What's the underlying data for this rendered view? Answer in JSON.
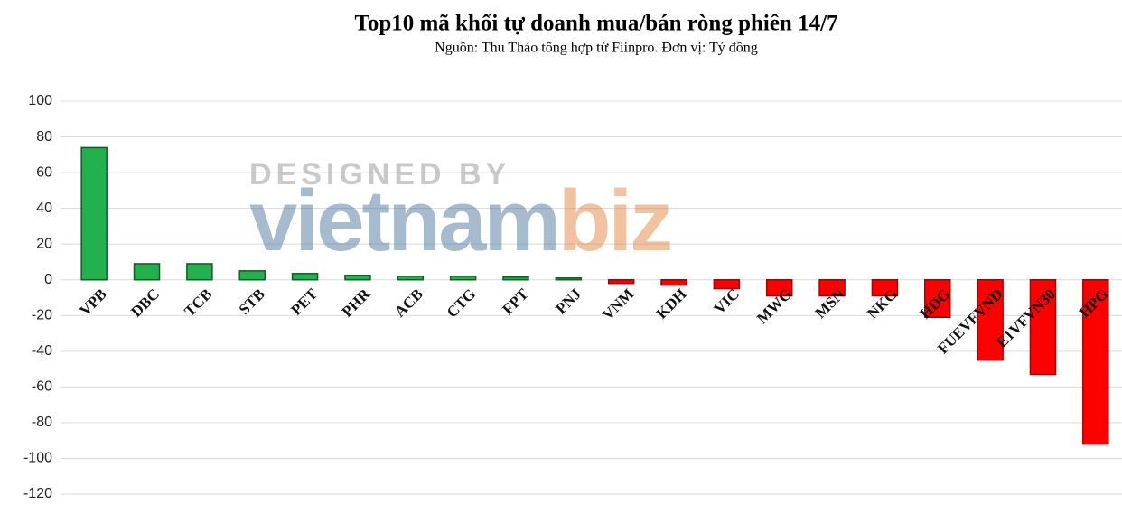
{
  "chart_data": {
    "type": "bar",
    "title": "Top10 mã khối tự doanh mua/bán ròng phiên 14/7",
    "subtitle": "Nguồn: Thu Thảo tổng hợp từ Fiinpro. Đơn vị: Tỷ đồng",
    "categories": [
      "VPB",
      "DBC",
      "TCB",
      "STB",
      "PET",
      "PHR",
      "ACB",
      "CTG",
      "FPT",
      "PNJ",
      "VNM",
      "KDH",
      "VIC",
      "MWG",
      "MSN",
      "NKG",
      "HDG",
      "FUEVFVND",
      "E1VFVN30",
      "HPG"
    ],
    "values": [
      74,
      9,
      9,
      5,
      3.5,
      2.5,
      2,
      2,
      1.5,
      1,
      -2,
      -3,
      -5,
      -9,
      -9,
      -9,
      -21,
      -45,
      -53,
      -92
    ],
    "positive_color": "#22b14c",
    "negative_color": "#ff0000",
    "ylim": [
      -120,
      100
    ],
    "yticks": [
      -120,
      -100,
      -80,
      -60,
      -40,
      -20,
      0,
      20,
      40,
      60,
      80,
      100
    ],
    "grid": true,
    "watermark": {
      "tagline": "DESIGNED BY",
      "name": "vietnam",
      "name_accent": "biz"
    }
  }
}
